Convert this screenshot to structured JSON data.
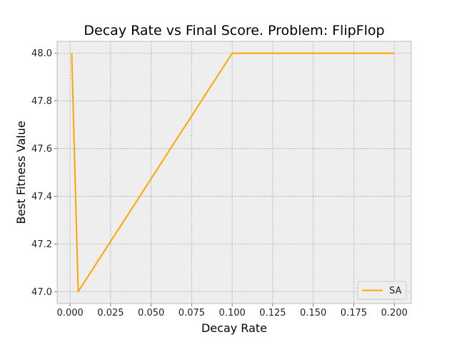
{
  "chart_data": {
    "type": "line",
    "title": "Decay Rate vs Final Score.  Problem: FlipFlop",
    "xlabel": "Decay Rate",
    "ylabel": "Best Fitness Value",
    "xlim": [
      -0.008,
      0.2105
    ],
    "ylim": [
      46.95,
      48.05
    ],
    "xticks": [
      0.0,
      0.025,
      0.05,
      0.075,
      0.1,
      0.125,
      0.15,
      0.175,
      0.2
    ],
    "xtick_labels": [
      "0.000",
      "0.025",
      "0.050",
      "0.075",
      "0.100",
      "0.125",
      "0.150",
      "0.175",
      "0.200"
    ],
    "yticks": [
      47.0,
      47.2,
      47.4,
      47.6,
      47.8,
      48.0
    ],
    "ytick_labels": [
      "47.0",
      "47.2",
      "47.4",
      "47.6",
      "47.8",
      "48.0"
    ],
    "grid": true,
    "legend_position": "lower-right",
    "series": [
      {
        "name": "SA",
        "color": "#ffa500",
        "x": [
          0.001,
          0.005,
          0.1,
          0.2
        ],
        "y": [
          48.0,
          47.0,
          48.0,
          48.0
        ]
      }
    ]
  }
}
